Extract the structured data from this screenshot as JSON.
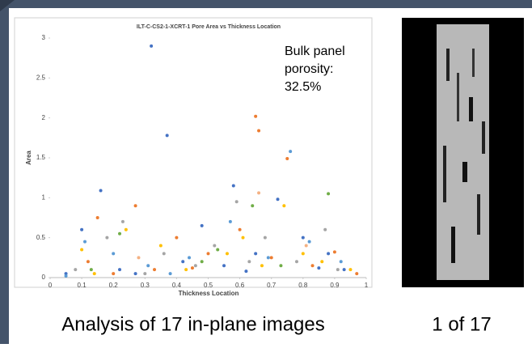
{
  "chart_data": {
    "type": "scatter",
    "title": "ILT-C-CS2-1-XCRT-1 Pore Area vs Thickness Location",
    "x_label": "Thickness Location",
    "y_label": "Area",
    "annotation": [
      "Bulk panel",
      "porosity:",
      "32.5%"
    ],
    "xlim": [
      0,
      1
    ],
    "xticks": [
      0,
      0.1,
      0.2,
      0.3,
      0.4,
      0.5,
      0.6,
      0.7,
      0.8,
      0.9,
      1
    ],
    "ylim": [
      0,
      3
    ],
    "yticks": [
      0,
      0.5,
      1,
      1.5,
      2,
      2.5,
      3
    ],
    "series": [
      {
        "color": "#4472c4",
        "x": [
          0.1,
          0.16,
          0.32,
          0.37,
          0.48,
          0.58,
          0.65,
          0.72,
          0.8,
          0.88,
          0.05,
          0.22,
          0.42,
          0.55,
          0.93,
          0.27,
          0.62,
          0.85
        ],
        "values": [
          0.6,
          1.09,
          2.9,
          1.78,
          0.65,
          1.15,
          0.3,
          0.98,
          0.5,
          0.3,
          0.05,
          0.1,
          0.2,
          0.15,
          0.1,
          0.05,
          0.08,
          0.12
        ]
      },
      {
        "color": "#ed7d31",
        "x": [
          0.15,
          0.27,
          0.4,
          0.6,
          0.65,
          0.66,
          0.75,
          0.9,
          0.12,
          0.33,
          0.5,
          0.7,
          0.83,
          0.97,
          0.2,
          0.45
        ],
        "values": [
          0.75,
          0.9,
          0.5,
          0.6,
          2.02,
          1.84,
          1.49,
          0.32,
          0.2,
          0.1,
          0.3,
          0.25,
          0.15,
          0.05,
          0.05,
          0.12
        ]
      },
      {
        "color": "#a5a5a5",
        "x": [
          0.18,
          0.23,
          0.36,
          0.52,
          0.59,
          0.68,
          0.78,
          0.87,
          0.08,
          0.3,
          0.46,
          0.63,
          0.91
        ],
        "values": [
          0.5,
          0.7,
          0.3,
          0.4,
          0.95,
          0.5,
          0.2,
          0.6,
          0.1,
          0.05,
          0.15,
          0.2,
          0.1
        ]
      },
      {
        "color": "#ffc000",
        "x": [
          0.1,
          0.24,
          0.35,
          0.56,
          0.61,
          0.74,
          0.86,
          0.95,
          0.14,
          0.43,
          0.67,
          0.8
        ],
        "values": [
          0.35,
          0.6,
          0.4,
          0.3,
          0.5,
          0.9,
          0.2,
          0.1,
          0.05,
          0.1,
          0.15,
          0.3
        ]
      },
      {
        "color": "#5b9bd5",
        "x": [
          0.11,
          0.2,
          0.31,
          0.44,
          0.57,
          0.69,
          0.76,
          0.82,
          0.92,
          0.05,
          0.38
        ],
        "values": [
          0.45,
          0.3,
          0.15,
          0.25,
          0.7,
          0.25,
          1.58,
          0.45,
          0.2,
          0.02,
          0.05
        ]
      },
      {
        "color": "#70ad47",
        "x": [
          0.22,
          0.48,
          0.64,
          0.88,
          0.13,
          0.53,
          0.73
        ],
        "values": [
          0.55,
          0.2,
          0.9,
          1.05,
          0.1,
          0.35,
          0.15
        ]
      },
      {
        "color": "#f4b183",
        "x": [
          0.66,
          0.28,
          0.81
        ],
        "values": [
          1.06,
          0.25,
          0.4
        ]
      }
    ]
  },
  "captions": {
    "left": "Analysis of 17 in-plane images",
    "right": "1 of 17"
  }
}
